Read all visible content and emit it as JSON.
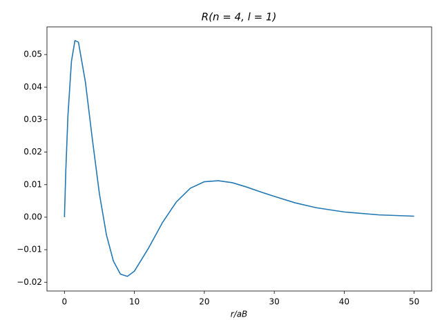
{
  "chart_data": {
    "type": "line",
    "title": "R(n = 4, l = 1)",
    "x_label": "r/aB",
    "x": [
      0,
      0.2,
      0.5,
      1,
      1.5,
      2,
      3,
      4,
      5,
      6,
      7,
      8,
      9,
      10,
      12,
      14,
      16,
      18,
      20,
      22,
      24,
      26,
      28,
      30,
      33,
      36,
      40,
      45,
      50
    ],
    "values": [
      0,
      0.0146,
      0.0313,
      0.0479,
      0.0543,
      0.0538,
      0.0415,
      0.0238,
      0.0072,
      -0.0054,
      -0.0135,
      -0.0175,
      -0.0182,
      -0.0166,
      -0.0096,
      -0.0017,
      0.0047,
      0.0089,
      0.0109,
      0.0112,
      0.0106,
      0.0093,
      0.0078,
      0.0064,
      0.0044,
      0.0029,
      0.0016,
      0.0007,
      0.0003
    ],
    "color": "#1f77b4",
    "xlim": [
      -2.5,
      52.5
    ],
    "ylim": [
      -0.0227,
      0.0585
    ],
    "xticks": [
      0,
      10,
      20,
      30,
      40,
      50
    ],
    "yticks": [
      {
        "value": -0.02,
        "label": "−0.02"
      },
      {
        "value": -0.01,
        "label": "−0.01"
      },
      {
        "value": 0,
        "label": "0.00"
      },
      {
        "value": 0.01,
        "label": "0.01"
      },
      {
        "value": 0.02,
        "label": "0.02"
      },
      {
        "value": 0.03,
        "label": "0.03"
      },
      {
        "value": 0.04,
        "label": "0.04"
      },
      {
        "value": 0.05,
        "label": "0.05"
      }
    ],
    "grid": false
  }
}
